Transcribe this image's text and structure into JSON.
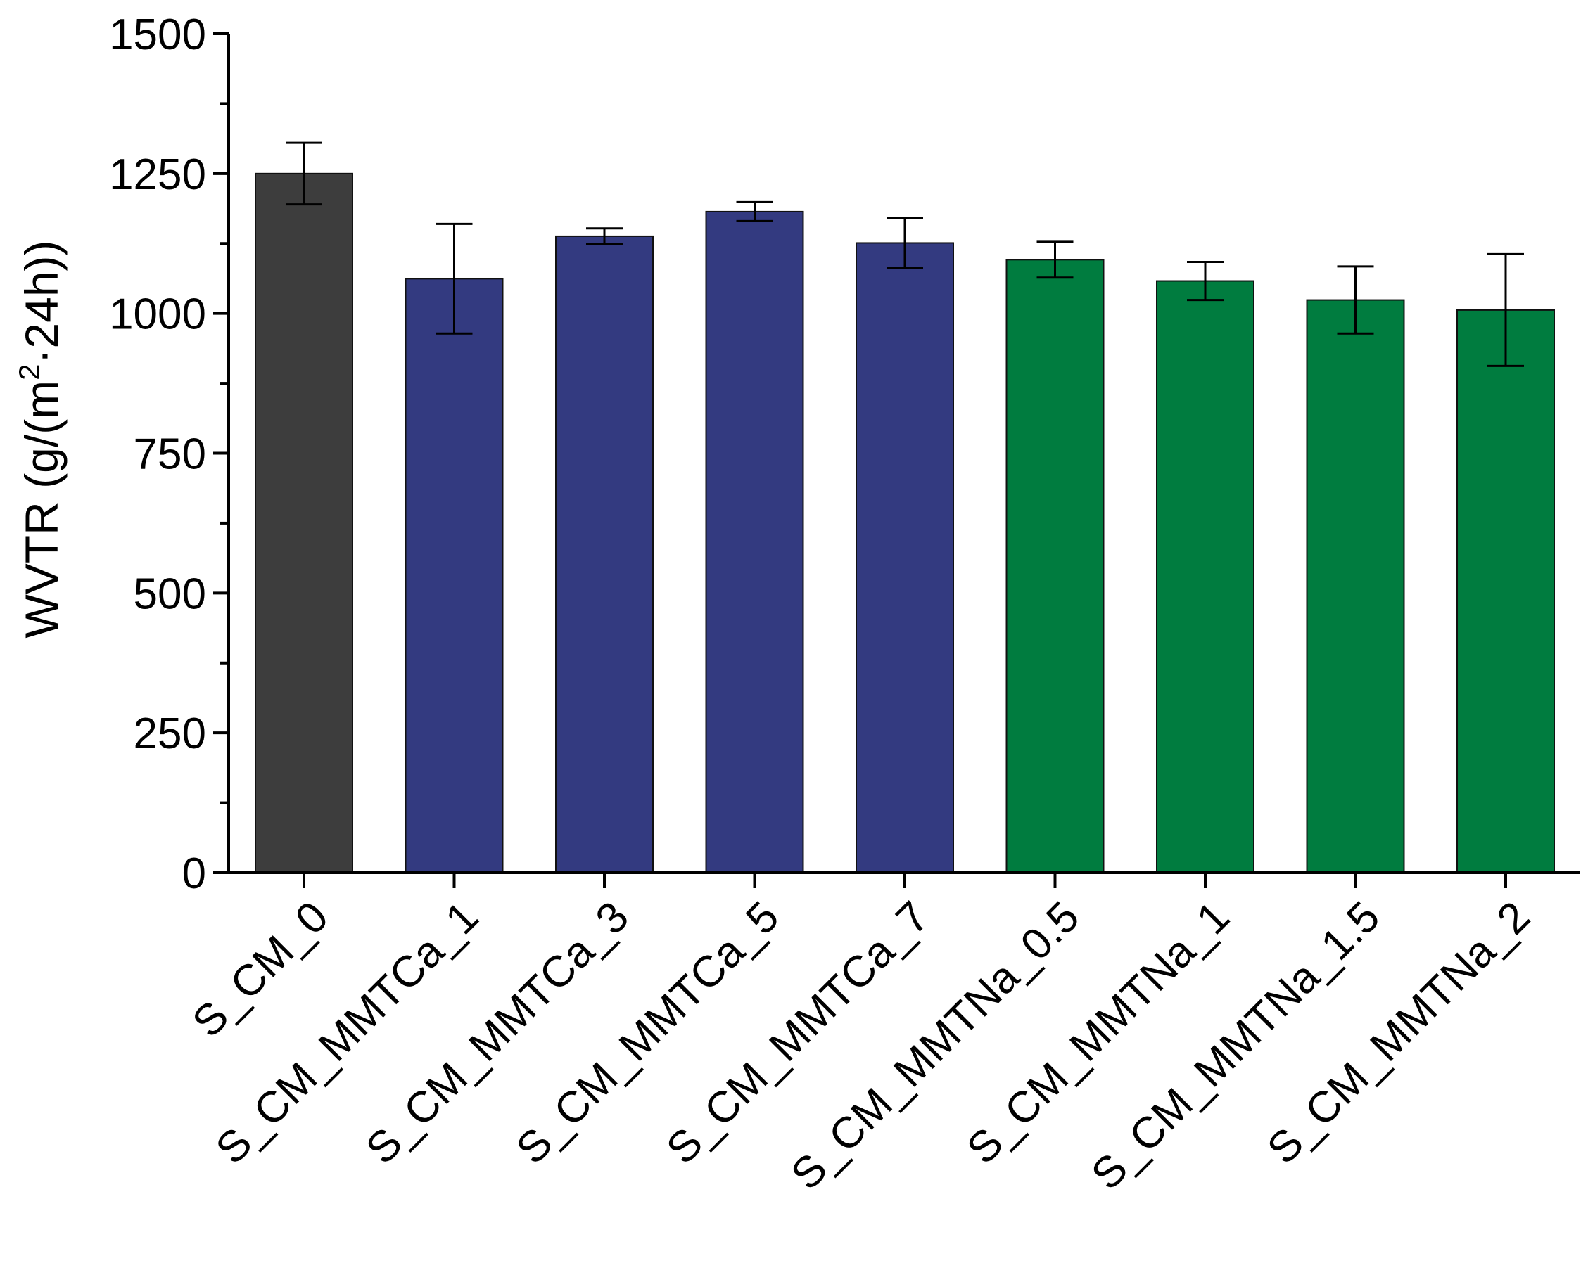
{
  "chart_data": {
    "type": "bar",
    "title": "",
    "xlabel": "",
    "ylabel": {
      "prefix": "WVTR (g/(m",
      "superscript": "2",
      "suffix": "·24h))"
    },
    "ylim": [
      0,
      1500
    ],
    "yticks": [
      0,
      250,
      500,
      750,
      1000,
      1250,
      1500
    ],
    "ytick_labels": [
      "0",
      "250",
      "500",
      "750",
      "1000",
      "1250",
      "1500"
    ],
    "grid": false,
    "categories": [
      "S_CM_0",
      "S_CM_MMTCa_1",
      "S_CM_MMTCa_3",
      "S_CM_MMTCa_5",
      "S_CM_MMTCa_7",
      "S_CM_MMTNa_0.5",
      "S_CM_MMTNa_1",
      "S_CM_MMTNa_1.5",
      "S_CM_MMTNa_2"
    ],
    "values": [
      1250,
      1062,
      1138,
      1182,
      1126,
      1096,
      1058,
      1024,
      1006
    ],
    "errors": [
      55,
      98,
      14,
      17,
      45,
      32,
      34,
      60,
      100
    ],
    "bar_groups": [
      "control",
      "MMTCa",
      "MMTCa",
      "MMTCa",
      "MMTCa",
      "MMTNa",
      "MMTNa",
      "MMTNa",
      "MMTNa"
    ],
    "colors": {
      "control": "#3d3d3d",
      "MMTCa": "#333a80",
      "MMTNa": "#007c3f"
    }
  }
}
